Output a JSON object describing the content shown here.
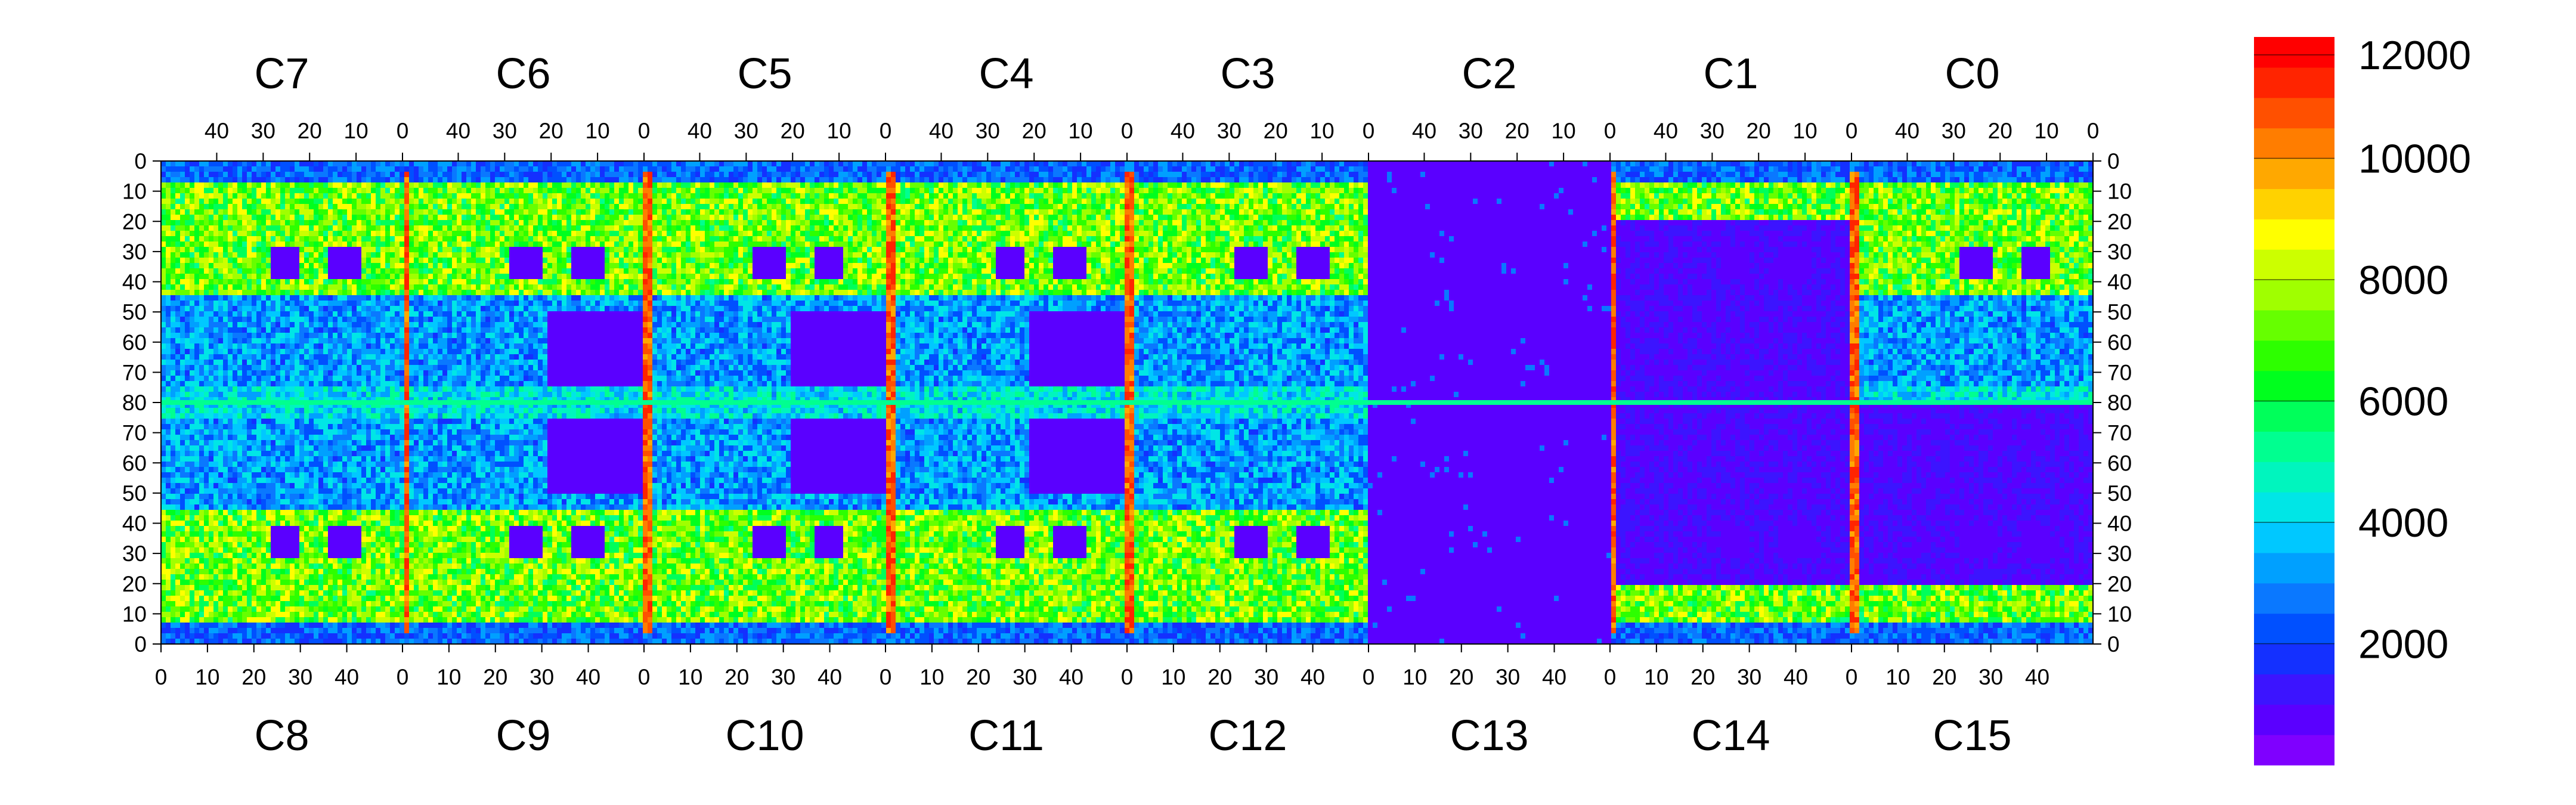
{
  "chart_data": {
    "type": "heatmap",
    "top_chip_labels": [
      "C7",
      "C6",
      "C5",
      "C4",
      "C3",
      "C2",
      "C1",
      "C0"
    ],
    "bottom_chip_labels": [
      "C8",
      "C9",
      "C10",
      "C11",
      "C12",
      "C13",
      "C14",
      "C15"
    ],
    "column_tick_labels_top": [
      "40",
      "30",
      "20",
      "10",
      "0"
    ],
    "column_tick_labels_bottom": [
      "0",
      "10",
      "20",
      "30",
      "40"
    ],
    "row_tick_labels_upper": [
      "0",
      "10",
      "20",
      "30",
      "40",
      "50",
      "60",
      "70",
      "80"
    ],
    "row_tick_labels_lower": [
      "80",
      "70",
      "60",
      "50",
      "40",
      "30",
      "20",
      "10",
      "0"
    ],
    "columns_per_chip": 52,
    "rows_per_half": 80,
    "colorbar": {
      "range": [
        0,
        12000
      ],
      "tick_labels": [
        "12000",
        "10000",
        "8000",
        "6000",
        "4000",
        "2000"
      ],
      "tick_values": [
        12000,
        10000,
        8000,
        6000,
        4000,
        2000
      ],
      "colors": [
        "#7f00ff",
        "#5a00ff",
        "#3c14ff",
        "#1430ff",
        "#0050ff",
        "#0a78ff",
        "#00a0ff",
        "#00c8ff",
        "#00e6e6",
        "#00f5be",
        "#00ff90",
        "#00ff5a",
        "#00ff1e",
        "#2dff00",
        "#66ff00",
        "#a0ff00",
        "#ccff00",
        "#ffff00",
        "#ffd200",
        "#ffa800",
        "#ff7d00",
        "#ff5000",
        "#ff2400",
        "#ff0000"
      ]
    },
    "descriptive_levels": {
      "dead_chip_top": "C2",
      "dead_chip_bottom": "C13",
      "typical_active_region": 7200,
      "edge_column_peak": 11500,
      "low_region": 800
    }
  }
}
